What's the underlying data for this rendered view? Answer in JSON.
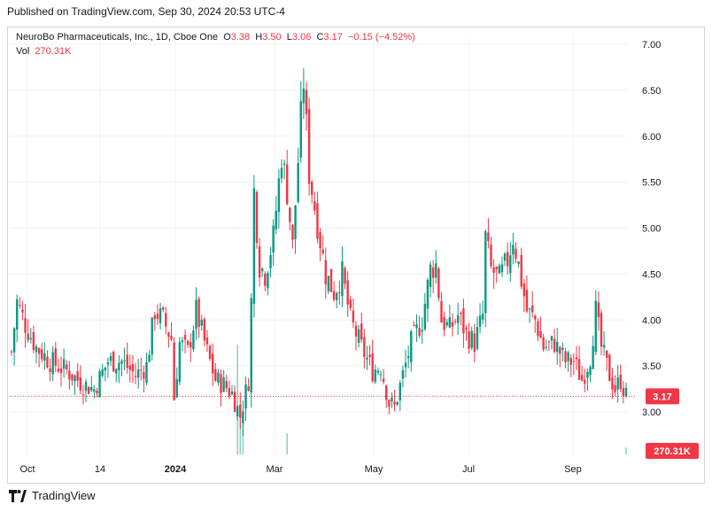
{
  "header": {
    "published": "Published on TradingView.com, Sep 30, 2024 20:53 UTC-4"
  },
  "legend": {
    "symbol": "NeuroBo Pharmaceuticals, Inc., 1D, Cboe One",
    "open_label": "O",
    "open": "3.38",
    "high_label": "H",
    "high": "3.50",
    "low_label": "L",
    "low": "3.06",
    "close_label": "C",
    "close": "3.17",
    "change": "−0.15 (−4.52%)",
    "vol_label": "Vol",
    "vol": "270.31K"
  },
  "price_tag": "3.17",
  "volume_tag": "270.31K",
  "footer": {
    "brand": "TradingView"
  },
  "colors": {
    "up": "#089981",
    "down": "#f23645",
    "grid": "#f0f3fa",
    "text": "#131722"
  },
  "chart_data": {
    "type": "candlestick",
    "title": "NeuroBo Pharmaceuticals, Inc., 1D, Cboe One",
    "y_axis": {
      "ticks": [
        "3.00",
        "3.50",
        "4.00",
        "4.50",
        "5.00",
        "5.50",
        "6.00",
        "6.50",
        "7.00"
      ],
      "range": [
        2.55,
        7.25
      ]
    },
    "x_axis": {
      "ticks": [
        "Oct",
        "14",
        "2024",
        "Mar",
        "May",
        "Jul",
        "Sep"
      ]
    },
    "last_price": 3.17,
    "last_volume": "270.31K",
    "grid": true,
    "price_path": [
      [
        0,
        3.65
      ],
      [
        2,
        4.2
      ],
      [
        5,
        3.95
      ],
      [
        9,
        3.7
      ],
      [
        14,
        3.55
      ],
      [
        20,
        3.45
      ],
      [
        26,
        3.3
      ],
      [
        30,
        3.25
      ],
      [
        35,
        3.55
      ],
      [
        40,
        3.55
      ],
      [
        45,
        3.4
      ],
      [
        49,
        3.5
      ],
      [
        52,
        4.1
      ],
      [
        55,
        4.0
      ],
      [
        58,
        3.8
      ],
      [
        59,
        3.15
      ],
      [
        61,
        3.75
      ],
      [
        64,
        3.65
      ],
      [
        67,
        4.1
      ],
      [
        71,
        3.65
      ],
      [
        74,
        3.35
      ],
      [
        77,
        3.3
      ],
      [
        80,
        3.2
      ],
      [
        83,
        2.95
      ],
      [
        86,
        3.35
      ],
      [
        87,
        4.2
      ],
      [
        88,
        5.4
      ],
      [
        90,
        4.6
      ],
      [
        92,
        4.5
      ],
      [
        95,
        4.9
      ],
      [
        98,
        5.8
      ],
      [
        100,
        5.4
      ],
      [
        102,
        4.8
      ],
      [
        105,
        6.2
      ],
      [
        106,
        6.6
      ],
      [
        108,
        5.6
      ],
      [
        111,
        5.05
      ],
      [
        114,
        4.5
      ],
      [
        117,
        4.3
      ],
      [
        120,
        4.5
      ],
      [
        123,
        4.0
      ],
      [
        127,
        3.7
      ],
      [
        131,
        3.45
      ],
      [
        134,
        3.5
      ],
      [
        137,
        3.1
      ],
      [
        139,
        3.05
      ],
      [
        142,
        3.4
      ],
      [
        145,
        3.75
      ],
      [
        149,
        4.0
      ],
      [
        152,
        4.55
      ],
      [
        154,
        4.6
      ],
      [
        156,
        4.0
      ],
      [
        159,
        3.9
      ],
      [
        162,
        4.05
      ],
      [
        165,
        3.85
      ],
      [
        168,
        3.75
      ],
      [
        171,
        4.05
      ],
      [
        172,
        4.9
      ],
      [
        174,
        4.55
      ],
      [
        177,
        4.45
      ],
      [
        180,
        4.65
      ],
      [
        182,
        4.9
      ],
      [
        184,
        4.6
      ],
      [
        187,
        4.1
      ],
      [
        190,
        4.0
      ],
      [
        193,
        3.7
      ],
      [
        197,
        3.75
      ],
      [
        201,
        3.55
      ],
      [
        204,
        3.55
      ],
      [
        207,
        3.35
      ],
      [
        210,
        3.6
      ],
      [
        212,
        4.1
      ],
      [
        214,
        3.7
      ],
      [
        217,
        3.4
      ],
      [
        219,
        3.25
      ],
      [
        221,
        3.35
      ],
      [
        223,
        3.17
      ]
    ],
    "volume_spikes": [
      [
        82,
        0.62
      ],
      [
        83,
        0.2
      ],
      [
        84,
        0.18
      ],
      [
        100,
        0.12
      ],
      [
        223,
        0.04
      ]
    ]
  }
}
